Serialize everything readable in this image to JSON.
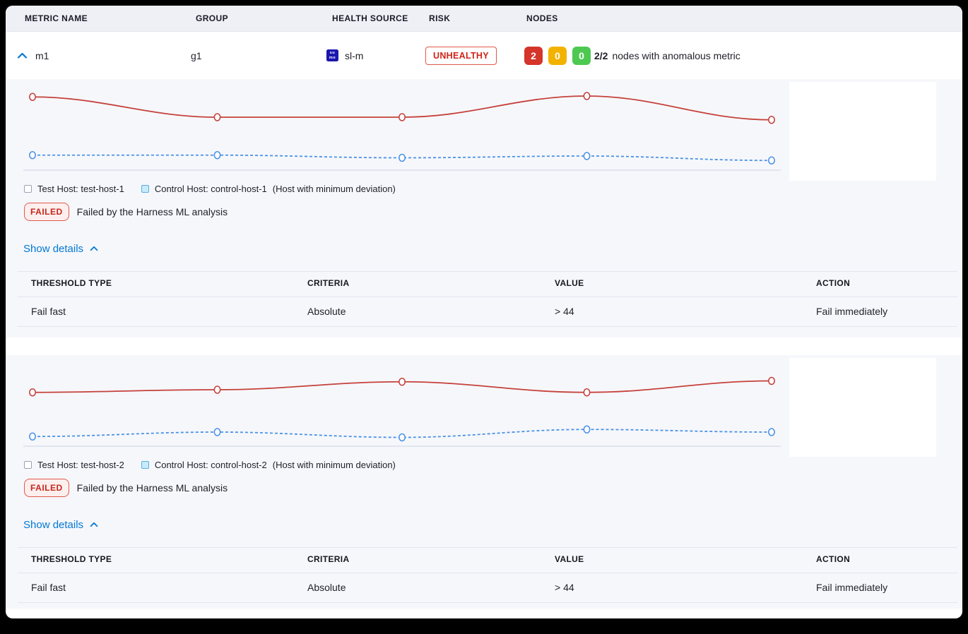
{
  "table_header": {
    "metric_name": "METRIC NAME",
    "group": "GROUP",
    "health_source": "HEALTH SOURCE",
    "risk": "RISK",
    "nodes": "NODES"
  },
  "metric_row": {
    "name": "m1",
    "group": "g1",
    "health_source": "sl-m",
    "health_source_icon_line1": "su",
    "health_source_icon_line2": "mo",
    "risk_label": "UNHEALTHY",
    "node_counts": {
      "anomalous": "2",
      "warning": "0",
      "healthy": "0"
    },
    "nodes_summary_count": "2/2",
    "nodes_summary_text": "nodes with anomalous metric"
  },
  "sections": [
    {
      "test_host_label": "Test Host: test-host-1",
      "control_host_label": "Control Host: control-host-1",
      "deviation_note": "(Host with minimum deviation)",
      "status_label": "FAILED",
      "status_message": "Failed by the Harness ML analysis",
      "show_details_label": "Show details",
      "table": {
        "headers": [
          "THRESHOLD TYPE",
          "CRITERIA",
          "VALUE",
          "ACTION"
        ],
        "rows": [
          [
            "Fail fast",
            "Absolute",
            "> 44",
            "Fail immediately"
          ]
        ]
      }
    },
    {
      "test_host_label": "Test Host: test-host-2",
      "control_host_label": "Control Host: control-host-2",
      "deviation_note": "(Host with minimum deviation)",
      "status_label": "FAILED",
      "status_message": "Failed by the Harness ML analysis",
      "show_details_label": "Show details",
      "table": {
        "headers": [
          "THRESHOLD TYPE",
          "CRITERIA",
          "VALUE",
          "ACTION"
        ],
        "rows": [
          [
            "Fail fast",
            "Absolute",
            "> 44",
            "Fail immediately"
          ]
        ]
      }
    }
  ],
  "chart_data": [
    {
      "type": "line",
      "x": [
        1,
        2,
        3,
        4,
        5
      ],
      "series": [
        {
          "name": "Test Host: test-host-1",
          "color": "#c5413b",
          "dash": "solid",
          "marker": "open-circle",
          "values": [
            83,
            60,
            60,
            84,
            57
          ]
        },
        {
          "name": "Control Host: control-host-1",
          "color": "#4b92e5",
          "dash": "dashed",
          "marker": "open-circle",
          "values": [
            17,
            17,
            14,
            16,
            11
          ]
        }
      ],
      "ylim": [
        0,
        100
      ],
      "axis_labels_visible": false,
      "grid": false,
      "legend_position": "bottom",
      "note": "no tick labels shown in UI; values normalized 0-100 of plot height"
    },
    {
      "type": "line",
      "x": [
        1,
        2,
        3,
        4,
        5
      ],
      "series": [
        {
          "name": "Test Host: test-host-2",
          "color": "#c5413b",
          "dash": "solid",
          "marker": "open-circle",
          "values": [
            61,
            64,
            73,
            61,
            74
          ]
        },
        {
          "name": "Control Host: control-host-2",
          "color": "#4b92e5",
          "dash": "dashed",
          "marker": "open-circle",
          "values": [
            11,
            16,
            10,
            19,
            16
          ]
        }
      ],
      "ylim": [
        0,
        100
      ],
      "axis_labels_visible": false,
      "grid": false,
      "legend_position": "bottom",
      "note": "no tick labels shown in UI; values normalized 0-100 of plot height"
    }
  ],
  "colors": {
    "accent_blue": "#0278d5",
    "risk_red": "#cf2318",
    "node_red": "#d5342b",
    "node_yellow": "#f3b200",
    "node_green": "#4dc952",
    "test_series_red": "#c5413b",
    "control_series_blue": "#4b92e5",
    "section_bg": "#f6f7fb",
    "header_bg": "#eef0f6",
    "axis_line": "#ccd3e6"
  }
}
